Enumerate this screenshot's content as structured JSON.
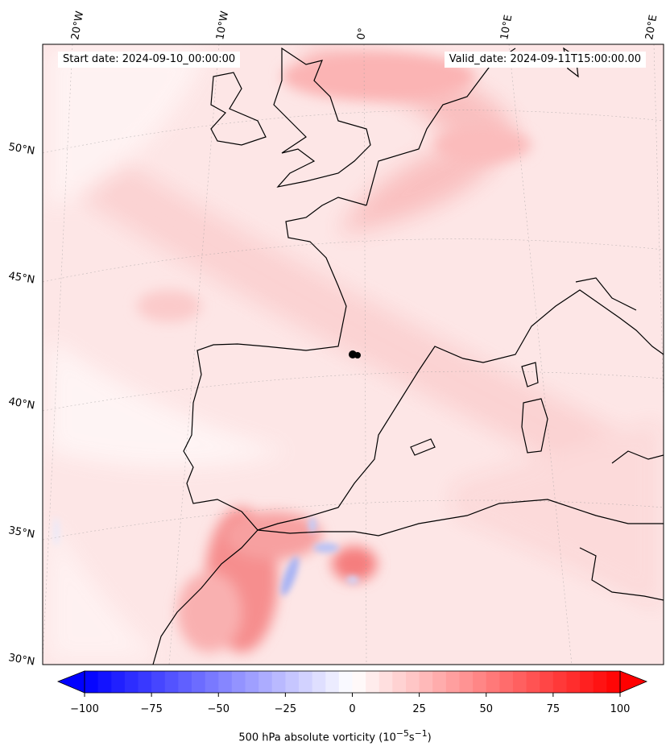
{
  "header": {
    "start_date": "Start date: 2024-09-10_00:00:00",
    "valid_date": "Valid_date: 2024-09-11T15:00:00.00"
  },
  "longitude_labels": [
    "20°W",
    "10°W",
    "0°",
    "10°E",
    "20°E"
  ],
  "latitude_labels": [
    "50°N",
    "45°N",
    "40°N",
    "35°N",
    "30°N"
  ],
  "colorbar": {
    "ticks": [
      "−100",
      "−75",
      "−50",
      "−25",
      "0",
      "25",
      "50",
      "75",
      "100"
    ],
    "tick_values": [
      -100,
      -75,
      -50,
      -25,
      0,
      25,
      50,
      75,
      100
    ],
    "min": -100,
    "max": 100,
    "step": 5,
    "title": "500 hPa absolute vorticity (10",
    "unit_sup1": "−5",
    "unit_mid": "s",
    "unit_sup2": "−1",
    "unit_close": ")"
  },
  "colors": {
    "negative": "#0000ff",
    "neutral": "#ffffff",
    "positive": "#ff0000",
    "coastline": "#000000"
  },
  "marker": {
    "label": "point-marker"
  }
}
